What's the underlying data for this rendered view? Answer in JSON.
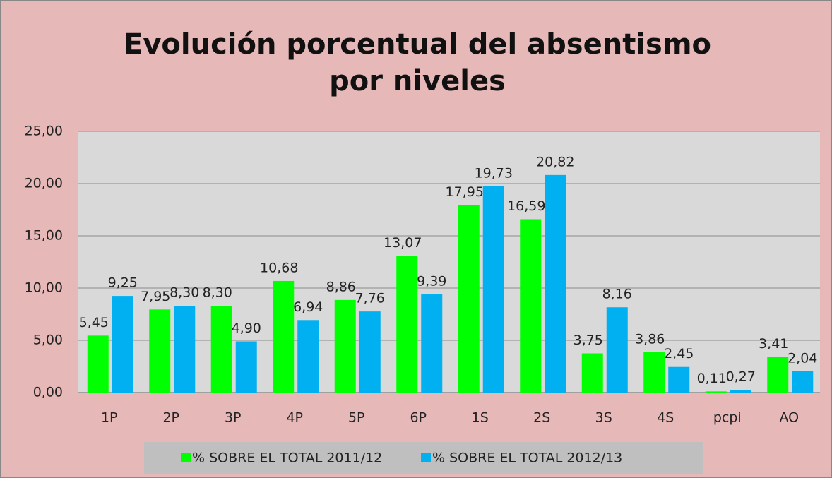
{
  "chart_data": {
    "type": "bar",
    "title": "Evolución porcentual del absentismo por niveles",
    "categories": [
      "1P",
      "2P",
      "3P",
      "4P",
      "5P",
      "6P",
      "1S",
      "2S",
      "3S",
      "4S",
      "pcpi",
      "AO"
    ],
    "series": [
      {
        "name": "% SOBRE EL TOTAL 2011/12",
        "color": "#00ff00",
        "values": [
          5.45,
          7.95,
          8.3,
          10.68,
          8.86,
          13.07,
          17.95,
          16.59,
          3.75,
          3.86,
          0.11,
          3.41
        ],
        "value_labels": [
          "5,45",
          "7,95",
          "8,30",
          "10,68",
          "8,86",
          "13,07",
          "17,95",
          "16,59",
          "3,75",
          "3,86",
          "0,11",
          "3,41"
        ]
      },
      {
        "name": "% SOBRE EL TOTAL 2012/13",
        "color": "#00b0f0",
        "values": [
          9.25,
          8.3,
          4.9,
          6.94,
          7.76,
          9.39,
          19.73,
          20.82,
          8.16,
          2.45,
          0.27,
          2.04
        ],
        "value_labels": [
          "9,25",
          "8,30",
          "4,90",
          "6,94",
          "7,76",
          "9,39",
          "19,73",
          "20,82",
          "8,16",
          "2,45",
          "0,27",
          "2,04"
        ]
      }
    ],
    "ylim": [
      0,
      25
    ],
    "yticks": [
      {
        "value": 0,
        "label": "0,00"
      },
      {
        "value": 5,
        "label": "5,00"
      },
      {
        "value": 10,
        "label": "10,00"
      },
      {
        "value": 15,
        "label": "15,00"
      },
      {
        "value": 20,
        "label": "20,00"
      },
      {
        "value": 25,
        "label": "25,00"
      }
    ],
    "grid": true,
    "legend": "bottom"
  }
}
